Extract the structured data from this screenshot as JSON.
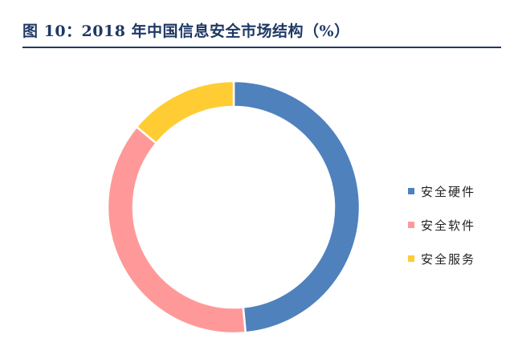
{
  "title": "图 10：2018 年中国信息安全市场结构（%）",
  "colors": {
    "title": "#1f3864",
    "rule": "#1f3864"
  },
  "chart_data": {
    "type": "pie",
    "variant": "donut",
    "title": "图 10：2018 年中国信息安全市场结构（%）",
    "unit": "%",
    "legend_position": "right",
    "slices": [
      {
        "label": "安全硬件",
        "value": 48.5,
        "color": "#4f81bd"
      },
      {
        "label": "安全软件",
        "value": 37.5,
        "color": "#ff9999"
      },
      {
        "label": "安全服务",
        "value": 14.0,
        "color": "#ffcc33"
      }
    ]
  }
}
